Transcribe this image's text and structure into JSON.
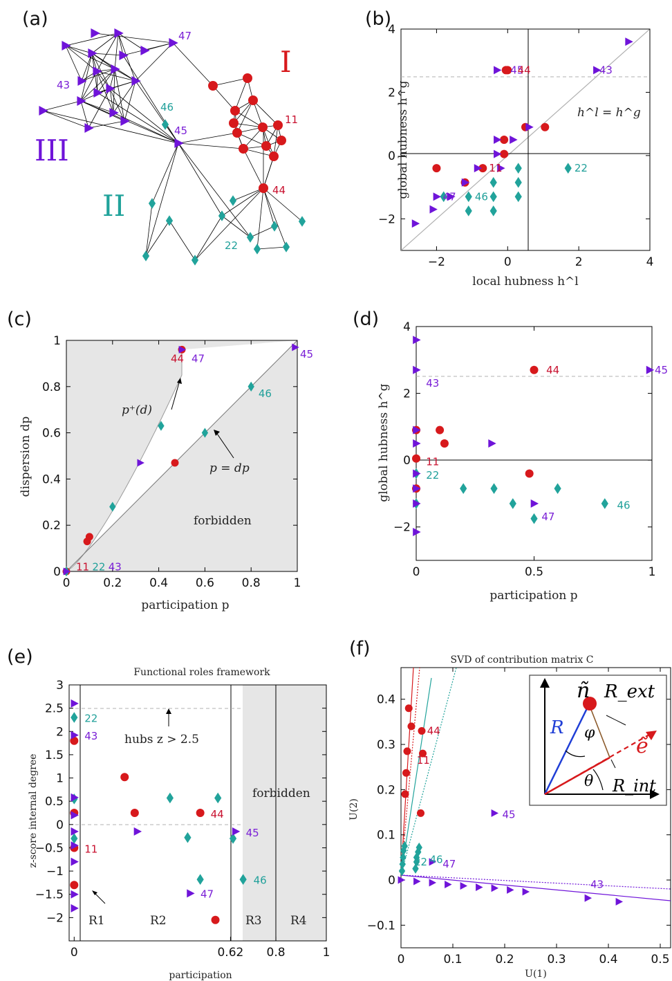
{
  "colors": {
    "I": "#d7191c",
    "II": "#21a39b",
    "III": "#6f14d9",
    "gray": "#e6e6e6"
  },
  "panel_labels": [
    "(a)",
    "(b)",
    "(c)",
    "(d)",
    "(e)",
    "(f)"
  ],
  "network": {
    "community_labels": {
      "I": "I",
      "II": "II",
      "III": "III"
    },
    "node_labels": [
      "47",
      "43",
      "46",
      "45",
      "11",
      "44",
      "22"
    ]
  },
  "chart_data": [
    {
      "panel": "(b)",
      "type": "scatter",
      "xlabel": "local hubness h^l",
      "ylabel": "global hubness h^g",
      "xlim": [
        -3,
        4
      ],
      "ylim": [
        -3,
        4
      ],
      "xticks": [
        "−2",
        "0",
        "2",
        "4"
      ],
      "yticks": [
        "−2",
        "0",
        "2",
        "4"
      ],
      "annotation": "h^l = h^g",
      "threshold": 2.5,
      "series": [
        {
          "group": "I",
          "marker": "circle",
          "x": [
            -2.0,
            -0.7,
            -1.2,
            -0.1,
            -0.1,
            0.5,
            1.05,
            0.0,
            -0.05
          ],
          "y": [
            -0.4,
            -0.4,
            -0.85,
            0.05,
            0.5,
            0.9,
            0.9,
            2.7,
            2.7
          ]
        },
        {
          "group": "II",
          "marker": "diamond",
          "x": [
            -1.8,
            -1.1,
            -1.1,
            -0.4,
            -0.4,
            -0.4,
            0.3,
            0.3,
            0.3,
            1.7
          ],
          "y": [
            -1.3,
            -1.3,
            -1.75,
            -0.85,
            -1.3,
            -1.75,
            -0.4,
            -0.85,
            -1.3,
            -0.4
          ]
        },
        {
          "group": "III",
          "marker": "triangle",
          "x": [
            -2.6,
            -2.1,
            -2.0,
            -1.6,
            -1.2,
            -0.85,
            -0.3,
            -0.3,
            0.15,
            0.6,
            2.5,
            3.4,
            -0.3,
            -0.2
          ],
          "y": [
            -2.15,
            -1.7,
            -1.3,
            -1.3,
            -0.85,
            -0.4,
            0.05,
            0.5,
            0.5,
            0.9,
            2.7,
            3.6,
            2.7,
            -0.4
          ]
        }
      ],
      "point_labels": [
        {
          "text": "43",
          "group": "III",
          "x": 2.5,
          "y": 2.7
        },
        {
          "text": "45",
          "group": "III",
          "x": 0.0,
          "y": 2.7
        },
        {
          "text": "44",
          "group": "I",
          "x": 0.2,
          "y": 2.7
        },
        {
          "text": "11",
          "group": "I",
          "x": -0.6,
          "y": -0.4
        },
        {
          "text": "22",
          "group": "II",
          "x": 1.8,
          "y": -0.4
        },
        {
          "text": "47",
          "group": "III",
          "x": -1.9,
          "y": -1.3
        },
        {
          "text": "46",
          "group": "II",
          "x": -1.0,
          "y": -1.3
        }
      ]
    },
    {
      "panel": "(c)",
      "type": "scatter",
      "xlabel": "participation p",
      "ylabel": "dispersion dp",
      "xlim": [
        0,
        1
      ],
      "ylim": [
        0,
        1
      ],
      "xticks": [
        "0",
        "0.2",
        "0.4",
        "0.6",
        "0.8",
        "1"
      ],
      "yticks": [
        "0",
        "0.2",
        "0.4",
        "0.6",
        "0.8",
        "1"
      ],
      "annotations": [
        "p⁺(d)",
        "p = dp",
        "forbidden"
      ],
      "series": [
        {
          "group": "I",
          "marker": "circle",
          "x": [
            0.0,
            0.1,
            0.09,
            0.47,
            0.5
          ],
          "y": [
            0.0,
            0.15,
            0.13,
            0.47,
            0.96
          ]
        },
        {
          "group": "II",
          "marker": "diamond",
          "x": [
            0.0,
            0.2,
            0.41,
            0.6,
            0.8
          ],
          "y": [
            0.0,
            0.28,
            0.63,
            0.6,
            0.8
          ]
        },
        {
          "group": "III",
          "marker": "triangle",
          "x": [
            0.0,
            0.32,
            0.5,
            0.99
          ],
          "y": [
            0.0,
            0.47,
            0.96,
            0.97
          ]
        }
      ],
      "point_labels": [
        {
          "text": "44",
          "group": "I",
          "x": 0.44,
          "y": 0.92
        },
        {
          "text": "47",
          "group": "III",
          "x": 0.53,
          "y": 0.92
        },
        {
          "text": "45",
          "group": "III",
          "x": 1.0,
          "y": 0.94
        },
        {
          "text": "46",
          "group": "II",
          "x": 0.82,
          "y": 0.77
        },
        {
          "text": "11",
          "group": "I",
          "x": 0.03,
          "y": 0.02
        },
        {
          "text": "22",
          "group": "II",
          "x": 0.1,
          "y": 0.02
        },
        {
          "text": "43",
          "group": "III",
          "x": 0.17,
          "y": 0.02
        }
      ]
    },
    {
      "panel": "(d)",
      "type": "scatter",
      "xlabel": "participation p",
      "ylabel": "global hubness h^g",
      "xlim": [
        0,
        1
      ],
      "ylim": [
        -3,
        4
      ],
      "xticks": [
        "0",
        "0.5",
        "1"
      ],
      "yticks": [
        "−2",
        "0",
        "2",
        "4"
      ],
      "threshold": 2.5,
      "series": [
        {
          "group": "I",
          "marker": "circle",
          "x": [
            0.0,
            0.0,
            0.0,
            0.1,
            0.12,
            0.48,
            0.5
          ],
          "y": [
            0.05,
            0.9,
            -0.85,
            0.9,
            0.5,
            -0.4,
            2.7
          ]
        },
        {
          "group": "II",
          "marker": "diamond",
          "x": [
            0.0,
            0.0,
            0.2,
            0.33,
            0.41,
            0.5,
            0.6,
            0.8
          ],
          "y": [
            -0.4,
            -1.3,
            -0.85,
            -0.85,
            -1.3,
            -1.75,
            -0.85,
            -1.3
          ]
        },
        {
          "group": "III",
          "marker": "triangle",
          "x": [
            0.0,
            0.0,
            0.0,
            0.0,
            0.0,
            0.0,
            0.0,
            0.0,
            0.32,
            0.5,
            0.99
          ],
          "y": [
            3.6,
            2.7,
            0.9,
            0.5,
            -0.4,
            -0.85,
            -1.3,
            -2.15,
            0.5,
            -1.3,
            2.7
          ]
        }
      ],
      "point_labels": [
        {
          "text": "43",
          "group": "III",
          "x": 0.03,
          "y": 2.3
        },
        {
          "text": "44",
          "group": "I",
          "x": 0.54,
          "y": 2.7
        },
        {
          "text": "45",
          "group": "III",
          "x": 1.0,
          "y": 2.7
        },
        {
          "text": "11",
          "group": "I",
          "x": 0.03,
          "y": -0.05
        },
        {
          "text": "22",
          "group": "II",
          "x": 0.03,
          "y": -0.45
        },
        {
          "text": "46",
          "group": "II",
          "x": 0.84,
          "y": -1.35
        },
        {
          "text": "47",
          "group": "III",
          "x": 0.52,
          "y": -1.7
        }
      ]
    },
    {
      "panel": "(e)",
      "type": "scatter",
      "title": "Functional roles framework",
      "xlabel": "participation",
      "ylabel": "z-score internal degree",
      "xlim": [
        -0.02,
        1.0
      ],
      "ylim": [
        -2.5,
        3.0
      ],
      "xticks": [
        "0",
        "0.62",
        "0.8",
        "1"
      ],
      "yticks": [
        "−2",
        "−1.5",
        "−1",
        "−0.5",
        "0",
        "0.5",
        "1",
        "1.5",
        "2",
        "2.5",
        "3"
      ],
      "region_labels": [
        "R1",
        "R2",
        "R3",
        "R4"
      ],
      "annotations": [
        "hubs z > 2.5",
        "forbidden"
      ],
      "series": [
        {
          "group": "I",
          "marker": "circle",
          "x": [
            0.0,
            0.0,
            0.0,
            0.0,
            0.2,
            0.24,
            0.5,
            0.56
          ],
          "y": [
            1.8,
            0.25,
            -0.5,
            -1.3,
            1.02,
            0.25,
            0.25,
            -2.05
          ]
        },
        {
          "group": "II",
          "marker": "diamond",
          "x": [
            0.0,
            0.0,
            0.0,
            0.38,
            0.45,
            0.5,
            0.57,
            0.63,
            0.67
          ],
          "y": [
            2.3,
            0.55,
            -0.3,
            0.57,
            -0.28,
            -1.18,
            0.57,
            -0.3,
            -1.18
          ]
        },
        {
          "group": "III",
          "marker": "triangle",
          "x": [
            0.0,
            0.0,
            0.0,
            0.0,
            0.0,
            0.0,
            0.0,
            0.0,
            0.0,
            0.25,
            0.46,
            0.64
          ],
          "y": [
            2.6,
            1.92,
            0.58,
            0.2,
            -0.15,
            -0.45,
            -0.8,
            -1.5,
            -1.8,
            -0.15,
            -1.48,
            -0.15
          ]
        }
      ],
      "point_labels": [
        {
          "text": "22",
          "group": "II",
          "x": 0.03,
          "y": 2.28
        },
        {
          "text": "43",
          "group": "III",
          "x": 0.03,
          "y": 1.9
        },
        {
          "text": "44",
          "group": "I",
          "x": 0.53,
          "y": 0.22
        },
        {
          "text": "45",
          "group": "III",
          "x": 0.67,
          "y": -0.18
        },
        {
          "text": "11",
          "group": "I",
          "x": 0.03,
          "y": -0.53
        },
        {
          "text": "46",
          "group": "II",
          "x": 0.7,
          "y": -1.2
        },
        {
          "text": "47",
          "group": "III",
          "x": 0.49,
          "y": -1.5
        }
      ]
    },
    {
      "panel": "(f)",
      "type": "scatter",
      "title": "SVD of contribution matrix C",
      "xlabel": "U(1)",
      "ylabel": "U(2)",
      "xlim": [
        0,
        0.52
      ],
      "ylim": [
        -0.15,
        0.47
      ],
      "xticks": [
        "0",
        "0.1",
        "0.2",
        "0.3",
        "0.4",
        "0.5"
      ],
      "yticks": [
        "−0.1",
        "0",
        "0.1",
        "0.2",
        "0.3",
        "0.4"
      ],
      "series": [
        {
          "group": "I",
          "marker": "circle",
          "x": [
            0.015,
            0.02,
            0.012,
            0.01,
            0.008,
            0.04,
            0.042,
            0.038
          ],
          "y": [
            0.38,
            0.34,
            0.285,
            0.237,
            0.19,
            0.33,
            0.28,
            0.148
          ]
        },
        {
          "group": "II",
          "marker": "diamond",
          "x": [
            0.002,
            0.003,
            0.004,
            0.005,
            0.007,
            0.03,
            0.033,
            0.035,
            0.03,
            0.028
          ],
          "y": [
            0.02,
            0.035,
            0.05,
            0.065,
            0.075,
            0.05,
            0.062,
            0.072,
            0.04,
            0.025
          ]
        },
        {
          "group": "III",
          "marker": "triangle",
          "x": [
            0.0,
            0.03,
            0.06,
            0.09,
            0.12,
            0.15,
            0.18,
            0.21,
            0.24,
            0.36,
            0.42,
            0.18,
            0.06
          ],
          "y": [
            0.0,
            -0.003,
            -0.006,
            -0.01,
            -0.013,
            -0.016,
            -0.018,
            -0.022,
            -0.026,
            -0.04,
            -0.048,
            0.148,
            0.04
          ]
        }
      ],
      "point_labels": [
        {
          "text": "44",
          "group": "I",
          "x": 0.045,
          "y": 0.33
        },
        {
          "text": "11",
          "group": "I",
          "x": 0.025,
          "y": 0.265
        },
        {
          "text": "45",
          "group": "III",
          "x": 0.19,
          "y": 0.145
        },
        {
          "text": "22",
          "group": "II",
          "x": 0.02,
          "y": 0.04
        },
        {
          "text": "46",
          "group": "II",
          "x": 0.05,
          "y": 0.045
        },
        {
          "text": "47",
          "group": "III",
          "x": 0.075,
          "y": 0.035
        },
        {
          "text": "43",
          "group": "III",
          "x": 0.36,
          "y": -0.01
        }
      ],
      "inset_labels": [
        "ñ",
        "R_ext",
        "R",
        "φ",
        "ẽ",
        "R_int",
        "θ"
      ]
    }
  ]
}
